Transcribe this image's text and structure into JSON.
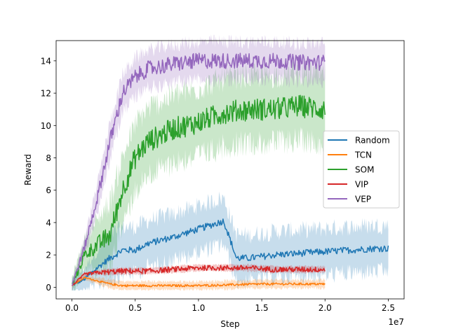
{
  "chart_data": {
    "type": "line",
    "title": "",
    "xlabel": "Step",
    "ylabel": "Reward",
    "x_offset_text": "1e7",
    "xlim": [
      -0.125,
      2.625
    ],
    "ylim": [
      -0.72,
      15.25
    ],
    "xticks": [
      0.0,
      0.5,
      1.0,
      1.5,
      2.0,
      2.5
    ],
    "xtick_labels": [
      "0.0",
      "0.5",
      "1.0",
      "1.5",
      "2.0",
      "2.5"
    ],
    "yticks": [
      0,
      2,
      4,
      6,
      8,
      10,
      12,
      14
    ],
    "ytick_labels": [
      "0",
      "2",
      "4",
      "6",
      "8",
      "10",
      "12",
      "14"
    ],
    "legend_position": "center-right",
    "grid": false,
    "series": [
      {
        "name": "Random",
        "color": "#1f77b4",
        "x": [
          0.0,
          0.1,
          0.2,
          0.3,
          0.4,
          0.5,
          0.6,
          0.8,
          1.0,
          1.2,
          1.3,
          1.4,
          1.6,
          1.8,
          2.0,
          2.2,
          2.4,
          2.5
        ],
        "y": [
          0.1,
          0.5,
          1.2,
          1.8,
          2.3,
          2.3,
          2.7,
          3.1,
          3.6,
          4.1,
          1.8,
          1.8,
          2.0,
          2.1,
          2.2,
          2.3,
          2.4,
          2.4
        ]
      },
      {
        "name": "TCN",
        "color": "#ff7f0e",
        "x": [
          0.0,
          0.1,
          0.2,
          0.3,
          0.4,
          0.6,
          1.0,
          1.5,
          2.0
        ],
        "y": [
          0.1,
          0.6,
          0.4,
          0.2,
          0.1,
          0.1,
          0.1,
          0.2,
          0.2
        ]
      },
      {
        "name": "SOM",
        "color": "#2ca02c",
        "x": [
          0.0,
          0.1,
          0.2,
          0.3,
          0.4,
          0.5,
          0.6,
          0.8,
          1.0,
          1.2,
          1.4,
          1.6,
          1.8,
          2.0
        ],
        "y": [
          0.1,
          2.0,
          2.6,
          3.2,
          6.0,
          8.0,
          9.0,
          9.8,
          10.2,
          10.8,
          11.0,
          11.0,
          11.2,
          11.0
        ]
      },
      {
        "name": "VIP",
        "color": "#d62728",
        "x": [
          0.0,
          0.1,
          0.2,
          0.4,
          0.6,
          0.8,
          1.0,
          1.2,
          1.4,
          1.6,
          1.8,
          2.0
        ],
        "y": [
          0.1,
          0.8,
          0.9,
          1.0,
          1.0,
          1.1,
          1.2,
          1.2,
          1.2,
          1.1,
          1.1,
          1.1
        ]
      },
      {
        "name": "VEP",
        "color": "#9467bd",
        "x": [
          0.0,
          0.1,
          0.2,
          0.3,
          0.4,
          0.5,
          0.6,
          0.8,
          1.0,
          1.2,
          1.4,
          1.6,
          1.8,
          2.0
        ],
        "y": [
          0.1,
          2.5,
          5.5,
          9.0,
          12.0,
          13.0,
          13.5,
          13.8,
          14.0,
          14.0,
          14.0,
          14.0,
          13.9,
          13.9
        ]
      }
    ]
  }
}
